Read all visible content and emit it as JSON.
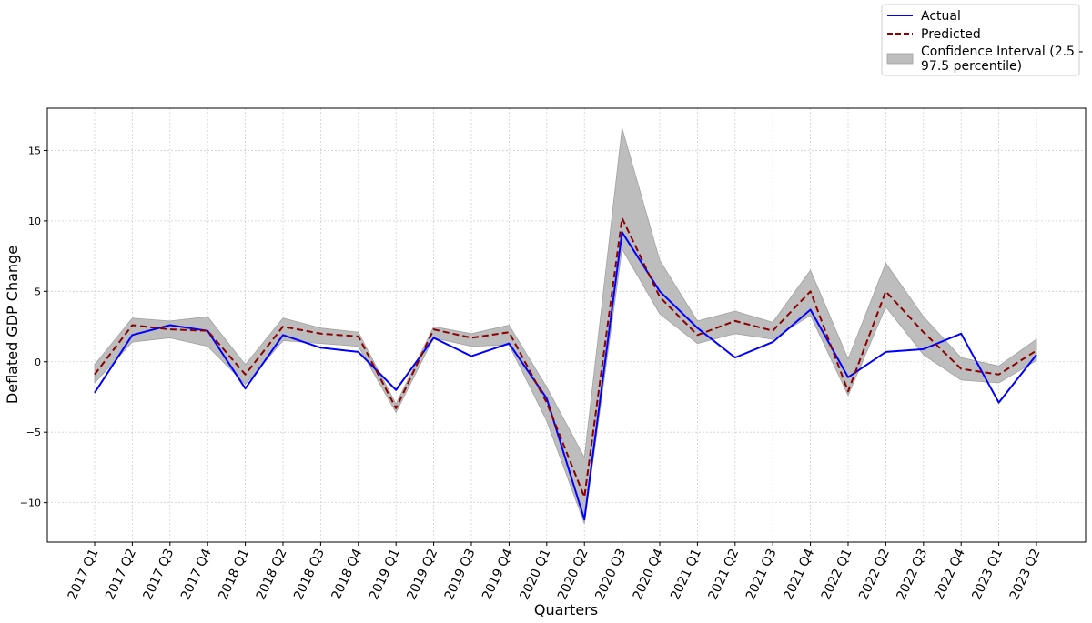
{
  "chart_data": {
    "type": "line",
    "title": "",
    "xlabel": "Quarters",
    "ylabel": "Deflated GDP Change",
    "ylim": [
      -12.8,
      18.0
    ],
    "yticks": [
      -10,
      -5,
      0,
      5,
      10,
      15
    ],
    "ytick_labels": [
      "−10",
      "−5",
      "0",
      "5",
      "10",
      "15"
    ],
    "grid": true,
    "legend_position": "top-right (above plot)",
    "categories": [
      "2017 Q1",
      "2017 Q2",
      "2017 Q3",
      "2017 Q4",
      "2018 Q1",
      "2018 Q2",
      "2018 Q3",
      "2018 Q4",
      "2019 Q1",
      "2019 Q2",
      "2019 Q3",
      "2019 Q4",
      "2020 Q1",
      "2020 Q2",
      "2020 Q3",
      "2020 Q4",
      "2021 Q1",
      "2021 Q2",
      "2021 Q3",
      "2021 Q4",
      "2022 Q1",
      "2022 Q2",
      "2022 Q3",
      "2022 Q4",
      "2023 Q1",
      "2023 Q2"
    ],
    "series": [
      {
        "name": "Actual",
        "style": "solid",
        "color": "#0000ff",
        "values": [
          -2.2,
          1.9,
          2.6,
          2.2,
          -1.9,
          1.9,
          1.0,
          0.7,
          -2.0,
          1.7,
          0.4,
          1.3,
          -2.6,
          -11.2,
          9.2,
          5.0,
          2.4,
          0.3,
          1.4,
          3.7,
          -1.1,
          0.7,
          0.9,
          2.0,
          -2.9,
          0.5
        ]
      },
      {
        "name": "Predicted",
        "style": "dashed",
        "color": "#8b0000",
        "values": [
          -0.9,
          2.6,
          2.3,
          2.2,
          -0.9,
          2.5,
          2.0,
          1.8,
          -3.3,
          2.3,
          1.7,
          2.1,
          -2.9,
          -9.6,
          10.2,
          4.6,
          1.9,
          2.9,
          2.2,
          5.0,
          -2.1,
          5.0,
          2.1,
          -0.5,
          -0.9,
          0.8
        ]
      }
    ],
    "confidence_interval": {
      "name": "Confidence Interval (2.5 - 97.5 percentile)",
      "color": "#a9a9a9",
      "lower": [
        -1.5,
        1.4,
        1.7,
        1.1,
        -1.6,
        1.5,
        1.3,
        1.1,
        -3.6,
        1.7,
        1.1,
        1.2,
        -4.2,
        -11.5,
        8.0,
        3.4,
        1.3,
        2.0,
        1.6,
        3.3,
        -2.4,
        3.9,
        0.5,
        -1.3,
        -1.5,
        0.1
      ],
      "upper": [
        -0.2,
        3.1,
        2.9,
        3.2,
        -0.2,
        3.1,
        2.4,
        2.1,
        -3.0,
        2.5,
        2.0,
        2.6,
        -1.8,
        -6.8,
        16.6,
        7.2,
        2.9,
        3.6,
        2.8,
        6.5,
        0.2,
        7.0,
        3.2,
        0.3,
        -0.3,
        1.6
      ]
    },
    "legend_lines": {
      "actual": "Actual",
      "predicted": "Predicted",
      "ci_line1": "Confidence Interval (2.5 -",
      "ci_line2": "97.5 percentile)"
    }
  }
}
